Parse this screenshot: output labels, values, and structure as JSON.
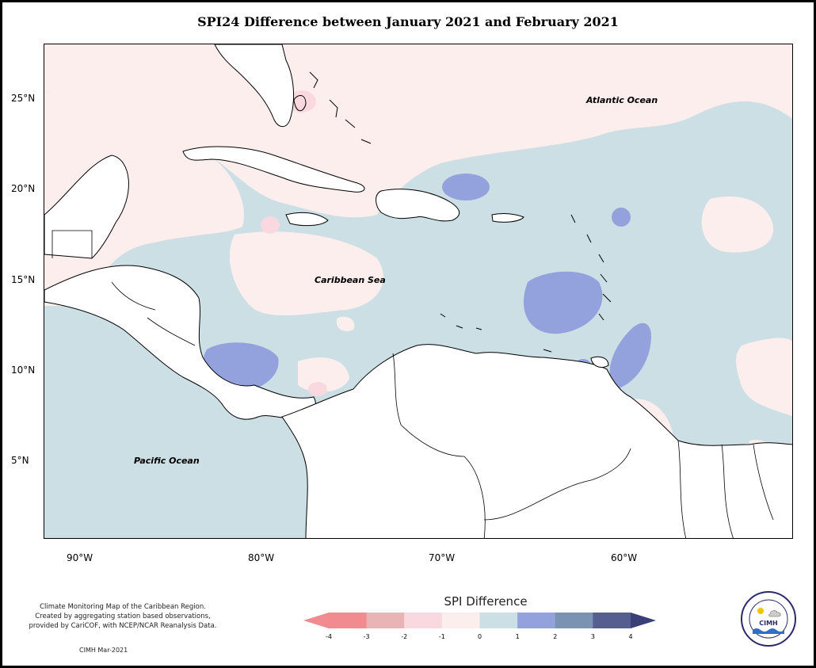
{
  "title": "SPI24 Difference between January 2021 and February 2021",
  "axes": {
    "lat_labels": [
      "25°N",
      "20°N",
      "15°N",
      "10°N",
      "5°N"
    ],
    "lon_labels": [
      "90°W",
      "80°W",
      "70°W",
      "60°W"
    ]
  },
  "places": {
    "atlantic": "Atlantic Ocean",
    "caribbean": "Caribbean Sea",
    "pacific": "Pacific Ocean"
  },
  "legend": {
    "title": "SPI Difference",
    "ticks": [
      "-4",
      "-3",
      "-2",
      "-1",
      "0",
      "1",
      "2",
      "3",
      "4"
    ],
    "colors": [
      "#f28b8f",
      "#e9b4b6",
      "#f9d9df",
      "#fdeeee",
      "#ccdfe5",
      "#93a1dc",
      "#7b93b2",
      "#555e8e"
    ],
    "under_color": "#f28b8f",
    "over_color": "#3a3f78"
  },
  "note": {
    "line1": "Climate Monitoring Map of the Caribbean Region.",
    "line2": "Created by aggregating station based observations,",
    "line3": "provided by CariCOF, with NCEP/NCAR Reanalysis Data."
  },
  "credit": "CIMH Mar-2021",
  "logo": {
    "text": "CIMH",
    "ring_text": "Caribbean Institute for Meteorology and Hydrology"
  }
}
